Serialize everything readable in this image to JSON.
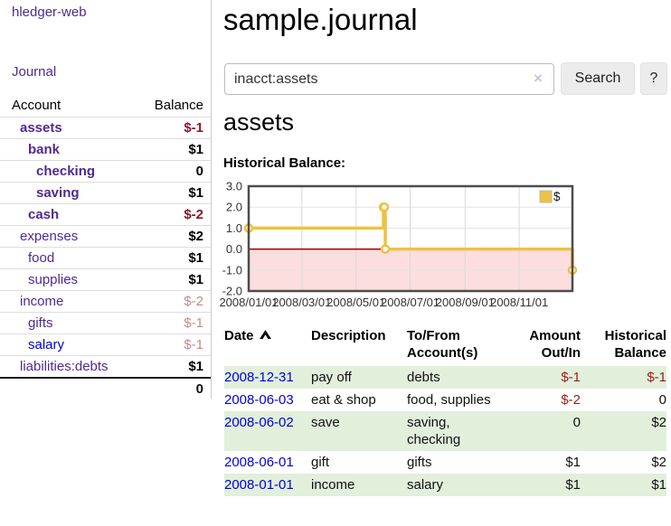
{
  "sidebar": {
    "brand": "hledger-web",
    "nav": {
      "journal": "Journal"
    },
    "accounts": {
      "header": {
        "account": "Account",
        "balance": "Balance"
      },
      "rows": [
        {
          "name": "assets",
          "indent": 1,
          "emph": true,
          "balance": "$-1",
          "tone": "neg-strong"
        },
        {
          "name": "bank",
          "indent": 2,
          "emph": true,
          "balance": "$1",
          "tone": "pos"
        },
        {
          "name": "checking",
          "indent": 3,
          "emph": true,
          "balance": "0",
          "tone": "pos"
        },
        {
          "name": "saving",
          "indent": 3,
          "emph": true,
          "balance": "$1",
          "tone": "pos"
        },
        {
          "name": "cash",
          "indent": 2,
          "emph": true,
          "balance": "$-2",
          "tone": "neg-strong"
        },
        {
          "name": "expenses",
          "indent": 1,
          "emph": false,
          "balance": "$2",
          "tone": "pos"
        },
        {
          "name": "food",
          "indent": 2,
          "emph": false,
          "balance": "$1",
          "tone": "pos"
        },
        {
          "name": "supplies",
          "indent": 2,
          "emph": false,
          "balance": "$1",
          "tone": "pos"
        },
        {
          "name": "income",
          "indent": 1,
          "emph": false,
          "balance": "$-2",
          "tone": "neg-muted"
        },
        {
          "name": "gifts",
          "indent": 2,
          "emph": false,
          "balance": "$-1",
          "tone": "neg-muted"
        },
        {
          "name": "salary",
          "indent": 2,
          "emph": false,
          "balance": "$-1",
          "tone": "neg-muted",
          "unvisited": true
        },
        {
          "name": "liabilities:debts",
          "indent": 1,
          "emph": false,
          "balance": "$1",
          "tone": "pos",
          "rule_after": true
        }
      ],
      "total": "0"
    }
  },
  "header": {
    "title": "sample.journal"
  },
  "search": {
    "value": "inacct:assets",
    "clear_label": "×",
    "button_label": "Search",
    "help_label": "?"
  },
  "account_page": {
    "heading": "assets",
    "chart_label": "Historical Balance:"
  },
  "chart_data": {
    "type": "line",
    "title": "Historical Balance",
    "legend": [
      {
        "label": "$",
        "color": "#EDC240"
      }
    ],
    "legend_position": "top-right",
    "grid": true,
    "ylim": [
      -2,
      3
    ],
    "y_ticks": [
      {
        "label": "3.0",
        "value": 3
      },
      {
        "label": "2.0",
        "value": 2
      },
      {
        "label": "1.0",
        "value": 1
      },
      {
        "label": "0.0",
        "value": 0
      },
      {
        "label": "-1.0",
        "value": -1
      },
      {
        "label": "-2.0",
        "value": -2
      }
    ],
    "x_range_days": [
      0,
      365
    ],
    "x_ticks": [
      {
        "label": "2008/01/01",
        "day": 0
      },
      {
        "label": "2008/03/01",
        "day": 60
      },
      {
        "label": "2008/05/01",
        "day": 121
      },
      {
        "label": "2008/07/01",
        "day": 182
      },
      {
        "label": "2008/09/01",
        "day": 244
      },
      {
        "label": "2008/11/01",
        "day": 305
      }
    ],
    "series": [
      {
        "name": "$",
        "color": "#EDC240",
        "step": true,
        "points": [
          {
            "date": "2008-01-01",
            "day": 0,
            "value": 1
          },
          {
            "date": "2008-06-01",
            "day": 152,
            "value": 2
          },
          {
            "date": "2008-06-02",
            "day": 153,
            "value": 2
          },
          {
            "date": "2008-06-03",
            "day": 154,
            "value": 0
          },
          {
            "date": "2008-12-31",
            "day": 365,
            "value": -1
          }
        ]
      }
    ],
    "zero_line_color": "#990000",
    "negative_region_color": "#fcdede",
    "gridline_color": "#d9d9d9",
    "border_color": "#4d4d4d"
  },
  "register": {
    "columns": [
      {
        "label": "Date",
        "sorted": "asc"
      },
      {
        "label": "Description"
      },
      {
        "label": "To/From\nAccount(s)"
      },
      {
        "label": "Amount\nOut/In",
        "align": "right"
      },
      {
        "label": "Historical\nBalance",
        "align": "right"
      }
    ],
    "rows": [
      {
        "date": "2008-12-31",
        "description": "pay off",
        "accounts": "debts",
        "amount": "$-1",
        "amount_tone": "neg",
        "balance": "$-1",
        "balance_tone": "neg",
        "shaded": true
      },
      {
        "date": "2008-06-03",
        "description": "eat & shop",
        "accounts": "food, supplies",
        "amount": "$-2",
        "amount_tone": "neg",
        "balance": "0",
        "balance_tone": "plain",
        "shaded": false
      },
      {
        "date": "2008-06-02",
        "description": "save",
        "accounts": "saving,\nchecking",
        "amount": "0",
        "amount_tone": "plain",
        "balance": "$2",
        "balance_tone": "plain",
        "shaded": true
      },
      {
        "date": "2008-06-01",
        "description": "gift",
        "accounts": "gifts",
        "amount": "$1",
        "amount_tone": "plain",
        "balance": "$2",
        "balance_tone": "plain",
        "shaded": false
      },
      {
        "date": "2008-01-01",
        "description": "income",
        "accounts": "salary",
        "amount": "$1",
        "amount_tone": "plain",
        "balance": "$1",
        "balance_tone": "plain",
        "shaded": true
      }
    ]
  },
  "colors": {
    "link_visited": "#4f2a93",
    "link_unvisited": "#0000dd",
    "negative_strong": "#8e1626",
    "negative_muted": "#c9898a",
    "register_negative": "#9b1c1c",
    "row_shade_green": "#e1efdb",
    "series_gold": "#EDC240"
  }
}
